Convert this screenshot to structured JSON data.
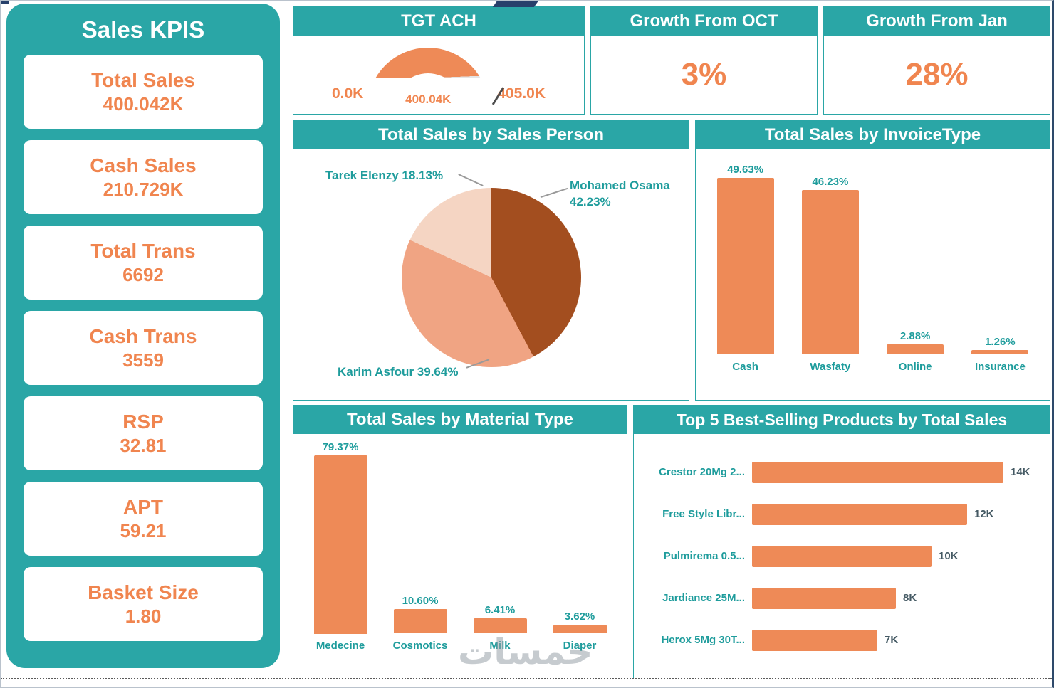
{
  "theme": {
    "teal": "#2AA6A6",
    "orange": "#EE8A57",
    "orange_text": "#F0854F",
    "label_teal": "#1E9C9C",
    "value_dark": "#455A64",
    "pie_dark": "#A34E1F",
    "pie_mid": "#F0A483",
    "pie_light": "#F5D5C3"
  },
  "sidebar": {
    "title": "Sales KPIS",
    "kpis": [
      {
        "label": "Total Sales",
        "value": "400.042K"
      },
      {
        "label": "Cash Sales",
        "value": "210.729K"
      },
      {
        "label": "Total Trans",
        "value": "6692"
      },
      {
        "label": "Cash Trans",
        "value": "3559"
      },
      {
        "label": "RSP",
        "value": "32.81"
      },
      {
        "label": "APT",
        "value": "59.21"
      },
      {
        "label": "Basket Size",
        "value": "1.80"
      }
    ]
  },
  "cards": [
    {
      "title": "Growth From OCT",
      "value": "3%"
    },
    {
      "title": "Growth From Jan",
      "value": "28%"
    }
  ],
  "watermark": "خمسات",
  "chart_data": [
    {
      "id": "gauge",
      "type": "gauge",
      "title": "TGT ACH",
      "min": 0,
      "max": 405,
      "value": 400.04,
      "unit": "K",
      "min_label": "0.0K",
      "max_label": "405.0K",
      "value_label": "400.04K"
    },
    {
      "id": "sales_person",
      "type": "pie",
      "title": "Total Sales by Sales Person",
      "slices": [
        {
          "name": "Mohamed Osama",
          "pct": "42.23%",
          "value": 42.23,
          "color": "#A34E1F"
        },
        {
          "name": "Karim Asfour",
          "pct": "39.64%",
          "value": 39.64,
          "color": "#F0A483"
        },
        {
          "name": "Tarek Elenzy",
          "pct": "18.13%",
          "value": 18.13,
          "color": "#F5D5C3"
        }
      ]
    },
    {
      "id": "invoice_type",
      "type": "bar",
      "title": "Total Sales by InvoiceType",
      "unit": "%",
      "ylim": [
        0,
        50
      ],
      "bars": [
        {
          "category": "Cash",
          "pct": "49.63%",
          "value": 49.63
        },
        {
          "category": "Wasfaty",
          "pct": "46.23%",
          "value": 46.23
        },
        {
          "category": "Online",
          "pct": "2.88%",
          "value": 2.88
        },
        {
          "category": "Insurance",
          "pct": "1.26%",
          "value": 1.26
        }
      ]
    },
    {
      "id": "material_type",
      "type": "bar",
      "title": "Total Sales by Material Type",
      "unit": "%",
      "ylim": [
        0,
        80
      ],
      "bars": [
        {
          "category": "Medecine",
          "pct": "79.37%",
          "value": 79.37
        },
        {
          "category": "Cosmotics",
          "pct": "10.60%",
          "value": 10.6
        },
        {
          "category": "Milk",
          "pct": "6.41%",
          "value": 6.41
        },
        {
          "category": "Diaper",
          "pct": "3.62%",
          "value": 3.62
        }
      ]
    },
    {
      "id": "top5",
      "type": "bar-horizontal",
      "title": "Top 5 Best-Selling Products by Total Sales",
      "unit": "K",
      "xlim": [
        0,
        14
      ],
      "bars": [
        {
          "label": "Crestor 20Mg 2...",
          "display": "14K",
          "value": 14
        },
        {
          "label": "Free Style Libr...",
          "display": "12K",
          "value": 12
        },
        {
          "label": "Pulmirema 0.5...",
          "display": "10K",
          "value": 10
        },
        {
          "label": "Jardiance 25M...",
          "display": "8K",
          "value": 8
        },
        {
          "label": "Herox 5Mg 30T...",
          "display": "7K",
          "value": 7
        }
      ]
    }
  ]
}
